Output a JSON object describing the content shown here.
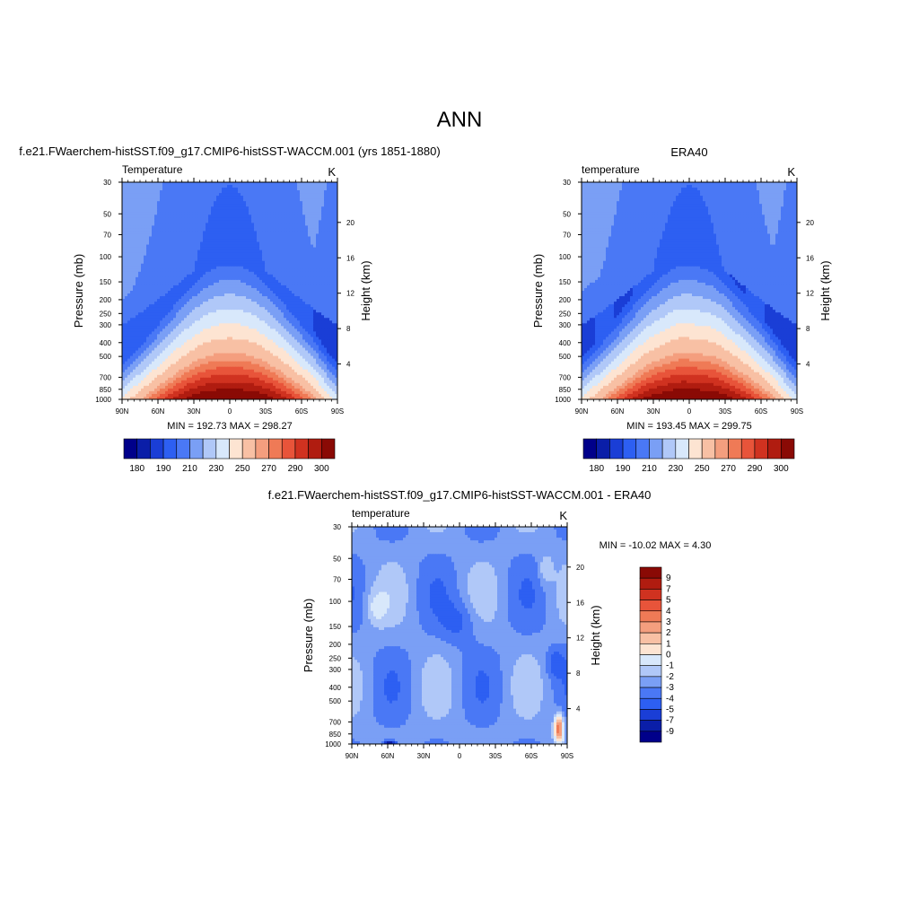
{
  "figure_title": "ANN",
  "colors": {
    "abs": [
      "#00008a",
      "#0a1ea8",
      "#1a3ed6",
      "#2d5ff2",
      "#4a78f5",
      "#7a9ff5",
      "#b0c8f8",
      "#d8e8fb",
      "#fde4d2",
      "#f8c0a4",
      "#f49e7e",
      "#ef7a56",
      "#e8543a",
      "#d03220",
      "#b01c10",
      "#8a0a05"
    ],
    "diff": [
      "#00008a",
      "#0a1ea8",
      "#1a3ed6",
      "#2d5ff2",
      "#4a78f5",
      "#7a9ff5",
      "#b0c8f8",
      "#d8e8fb",
      "#fde4d2",
      "#f8c0a4",
      "#f49e7e",
      "#ef7a56",
      "#e8543a",
      "#d03220",
      "#b01c10",
      "#8a0a05"
    ]
  },
  "axes_text": {
    "pressure_label": "Pressure (mb)",
    "height_label": "Height (km)",
    "p_ticks": [
      "30",
      "50",
      "70",
      "100",
      "150",
      "200",
      "250",
      "300",
      "400",
      "500",
      "700",
      "850",
      "1000"
    ],
    "h_ticks": [
      "20",
      "16",
      "12",
      "8",
      "4"
    ],
    "lat_ticks": [
      "90N",
      "60N",
      "30N",
      "0",
      "30S",
      "60S",
      "90S"
    ]
  },
  "panels": {
    "model": {
      "top_title": "f.e21.FWaerchem-histSST.f09_g17.CMIP6-histSST-WACCM.001 (yrs 1851-1880)",
      "var": "Temperature",
      "units": "K",
      "minmax": "MIN = 192.73  MAX = 298.27"
    },
    "obs": {
      "top_title": "ERA40",
      "var": "temperature",
      "units": "K",
      "minmax": "MIN = 193.45  MAX = 299.75"
    },
    "diff": {
      "top_title": "f.e21.FWaerchem-histSST.f09_g17.CMIP6-histSST-WACCM.001 - ERA40",
      "var": "temperature",
      "units": "K",
      "minmax": "MIN = -10.02  MAX =   4.30"
    }
  },
  "colorbar_abs_labels": [
    "180",
    "190",
    "210",
    "230",
    "250",
    "270",
    "290",
    "300"
  ],
  "colorbar_diff_labels": [
    "9",
    "7",
    "5",
    "4",
    "3",
    "2",
    "1",
    "0",
    "-1",
    "-2",
    "-3",
    "-4",
    "-5",
    "-7",
    "-9"
  ],
  "chart_data": [
    {
      "type": "heatmap",
      "title": "f.e21.FWaerchem-histSST.f09_g17.CMIP6-histSST-WACCM.001 (yrs 1851-1880)",
      "variable": "Temperature",
      "units": "K",
      "xlabel": "",
      "ylabel": "Pressure (mb)",
      "y2label": "Height (km)",
      "x_range": [
        "90N",
        "90S"
      ],
      "y_range_mb": [
        30,
        1000
      ],
      "y_scale": "log",
      "min": 192.73,
      "max": 298.27,
      "colorbar_levels": [
        180,
        190,
        210,
        230,
        250,
        270,
        290,
        300
      ]
    },
    {
      "type": "heatmap",
      "title": "ERA40",
      "variable": "temperature",
      "units": "K",
      "xlabel": "",
      "ylabel": "Pressure (mb)",
      "y2label": "Height (km)",
      "x_range": [
        "90N",
        "90S"
      ],
      "y_range_mb": [
        30,
        1000
      ],
      "y_scale": "log",
      "min": 193.45,
      "max": 299.75,
      "colorbar_levels": [
        180,
        190,
        210,
        230,
        250,
        270,
        290,
        300
      ]
    },
    {
      "type": "heatmap",
      "title": "f.e21.FWaerchem-histSST.f09_g17.CMIP6-histSST-WACCM.001 - ERA40",
      "variable": "temperature",
      "units": "K",
      "xlabel": "",
      "ylabel": "Pressure (mb)",
      "y2label": "Height (km)",
      "x_range": [
        "90N",
        "90S"
      ],
      "y_range_mb": [
        30,
        1000
      ],
      "y_scale": "log",
      "min": -10.02,
      "max": 4.3,
      "colorbar_levels": [
        9,
        7,
        5,
        4,
        3,
        2,
        1,
        0,
        -1,
        -2,
        -3,
        -4,
        -5,
        -7,
        -9
      ]
    }
  ]
}
